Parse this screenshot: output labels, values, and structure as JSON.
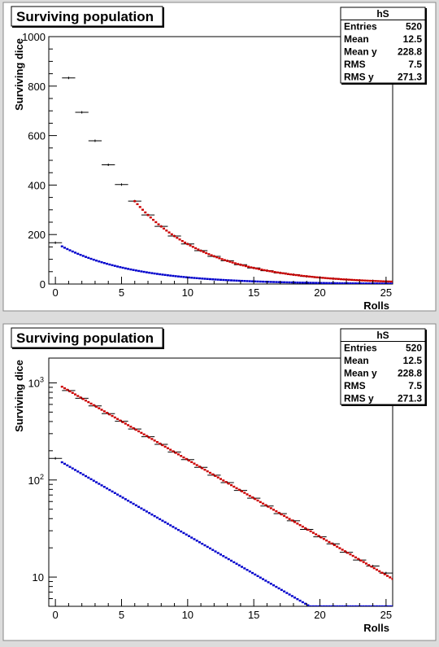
{
  "chart_data": [
    {
      "type": "scatter",
      "title": "Surviving population",
      "xlabel": "Rolls",
      "ylabel": "Surviving dice",
      "xlim": [
        -0.5,
        25.5
      ],
      "ylim": [
        0,
        1000
      ],
      "log_y": false,
      "x_ticks": [
        0,
        5,
        10,
        15,
        20,
        25
      ],
      "x_tick_labels": [
        "0",
        "5",
        "10",
        "15",
        "20",
        "25"
      ],
      "y_ticks": [
        0,
        200,
        400,
        600,
        800,
        1000
      ],
      "y_tick_labels": [
        "0",
        "200",
        "400",
        "600",
        "800",
        "1000"
      ],
      "stats": {
        "header": "hS",
        "rows": [
          {
            "label": "Entries",
            "value": "520"
          },
          {
            "label": "Mean",
            "value": "12.5"
          },
          {
            "label": "Mean y",
            "value": "228.8"
          },
          {
            "label": "RMS",
            "value": "7.5"
          },
          {
            "label": "RMS y",
            "value": "271.3"
          }
        ]
      },
      "series": [
        {
          "kind": "histogram",
          "color": "#000000",
          "x": [
            0,
            1,
            2,
            3,
            4,
            5,
            6,
            7,
            8,
            9,
            10,
            11,
            12,
            13,
            14,
            15,
            16,
            17,
            18,
            19,
            20,
            21,
            22,
            23,
            24,
            25
          ],
          "y": [
            167,
            833,
            694,
            579,
            482,
            402,
            335,
            279,
            233,
            194,
            162,
            135,
            112,
            94,
            78,
            65,
            54,
            45,
            38,
            31,
            26,
            22,
            18,
            15,
            13,
            11
          ]
        },
        {
          "kind": "curve",
          "color": "#cc0000",
          "x_range": [
            6,
            25.5
          ],
          "formula": "1000*(5/6)^x"
        },
        {
          "kind": "curve",
          "color": "#0000cc",
          "x_range": [
            0.5,
            25.5
          ],
          "formula": "166.7*(5/6)^x"
        }
      ]
    },
    {
      "type": "scatter",
      "title": "Surviving population",
      "xlabel": "Rolls",
      "ylabel": "Surviving dice",
      "xlim": [
        -0.5,
        25.5
      ],
      "ylim": [
        5,
        1800
      ],
      "log_y": true,
      "x_ticks": [
        0,
        5,
        10,
        15,
        20,
        25
      ],
      "x_tick_labels": [
        "0",
        "5",
        "10",
        "15",
        "20",
        "25"
      ],
      "y_ticks": [
        10,
        100,
        1000
      ],
      "y_tick_labels": [
        "10",
        "10^2",
        "10^3"
      ],
      "stats": {
        "header": "hS",
        "rows": [
          {
            "label": "Entries",
            "value": "520"
          },
          {
            "label": "Mean",
            "value": "12.5"
          },
          {
            "label": "Mean y",
            "value": "228.8"
          },
          {
            "label": "RMS",
            "value": "7.5"
          },
          {
            "label": "RMS y",
            "value": "271.3"
          }
        ]
      },
      "series": [
        {
          "kind": "histogram",
          "color": "#000000",
          "x": [
            0,
            1,
            2,
            3,
            4,
            5,
            6,
            7,
            8,
            9,
            10,
            11,
            12,
            13,
            14,
            15,
            16,
            17,
            18,
            19,
            20,
            21,
            22,
            23,
            24,
            25
          ],
          "y": [
            167,
            833,
            694,
            579,
            482,
            402,
            335,
            279,
            233,
            194,
            162,
            135,
            112,
            94,
            78,
            65,
            54,
            45,
            38,
            31,
            26,
            22,
            18,
            15,
            13,
            11
          ]
        },
        {
          "kind": "curve",
          "color": "#cc0000",
          "x_range": [
            0.5,
            25.5
          ],
          "formula": "1000*(5/6)^x"
        },
        {
          "kind": "curve",
          "color": "#0000cc",
          "x_range": [
            0.5,
            25.5
          ],
          "formula": "166.7*(5/6)^x",
          "floor": 5
        }
      ]
    }
  ]
}
